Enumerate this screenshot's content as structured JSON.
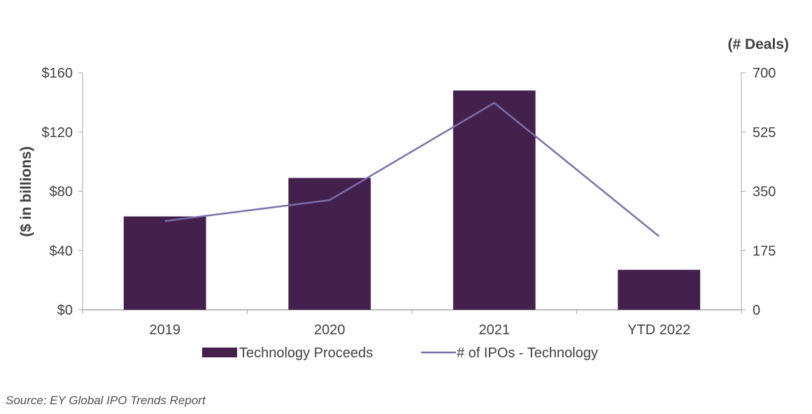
{
  "chart_data": {
    "type": "bar",
    "title": "",
    "categories": [
      "2019",
      "2020",
      "2021",
      "YTD 2022"
    ],
    "series": [
      {
        "name": "Technology Proceeds",
        "type": "bar",
        "axis": "left",
        "values": [
          63,
          89,
          148,
          27
        ],
        "color": "#44214d"
      },
      {
        "name": "# of IPOs - Technology",
        "type": "line",
        "axis": "right",
        "values": [
          262,
          324,
          611,
          217
        ],
        "color": "#7b6fae"
      }
    ],
    "y_left": {
      "label": "($ in billions)",
      "range": [
        0,
        160
      ],
      "ticks": [
        "$0",
        "$40",
        "$80",
        "$120",
        "$160"
      ],
      "tick_values": [
        0,
        40,
        80,
        120,
        160
      ]
    },
    "y_right": {
      "label": "(# Deals)",
      "range": [
        0,
        700
      ],
      "ticks": [
        "0",
        "175",
        "350",
        "525",
        "700"
      ],
      "tick_values": [
        0,
        175,
        350,
        525,
        700
      ]
    },
    "xlabel": "",
    "grid": false,
    "legend": {
      "placement": "bottom",
      "entries": [
        "Technology Proceeds",
        "# of IPOs - Technology"
      ]
    }
  },
  "source": "Source: EY Global IPO Trends Report"
}
